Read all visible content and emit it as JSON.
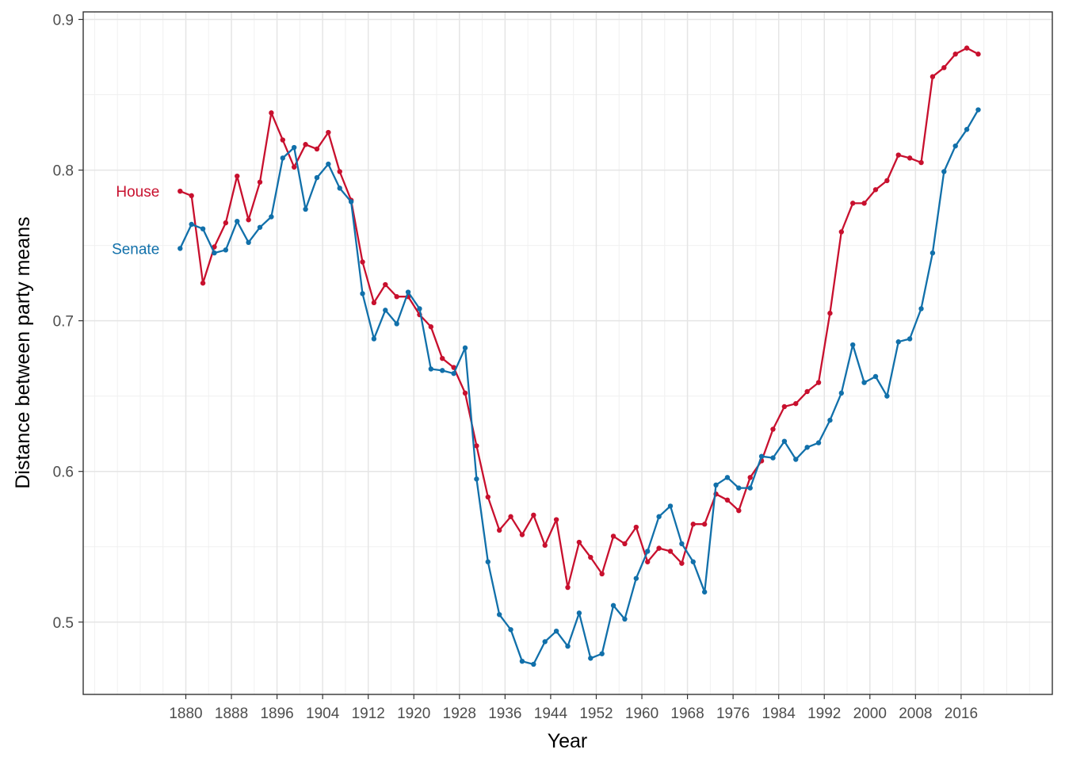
{
  "chart_data": {
    "type": "line",
    "xlabel": "Year",
    "ylabel": "Distance between party means",
    "xlim": [
      1862,
      2032
    ],
    "ylim": [
      0.452,
      0.905
    ],
    "x_ticks": [
      1880,
      1888,
      1896,
      1904,
      1912,
      1920,
      1928,
      1936,
      1944,
      1952,
      1960,
      1968,
      1976,
      1984,
      1992,
      2000,
      2008,
      2016
    ],
    "x_tick_labels": [
      "1880",
      "1888",
      "1896",
      "1904",
      "1912",
      "1920",
      "1928",
      "1936",
      "1944",
      "1952",
      "1960",
      "1968",
      "1976",
      "1984",
      "1992",
      "2000",
      "2008",
      "2016"
    ],
    "y_ticks": [
      0.5,
      0.6,
      0.7,
      0.8,
      0.9
    ],
    "y_tick_labels": [
      "0.5",
      "0.6",
      "0.7",
      "0.8",
      "0.9"
    ],
    "grid": true,
    "legend": "direct labels at left of lines",
    "x": [
      1879,
      1881,
      1883,
      1885,
      1887,
      1889,
      1891,
      1893,
      1895,
      1897,
      1899,
      1901,
      1903,
      1905,
      1907,
      1909,
      1911,
      1913,
      1915,
      1917,
      1919,
      1921,
      1923,
      1925,
      1927,
      1929,
      1931,
      1933,
      1935,
      1937,
      1939,
      1941,
      1943,
      1945,
      1947,
      1949,
      1951,
      1953,
      1955,
      1957,
      1959,
      1961,
      1963,
      1965,
      1967,
      1969,
      1971,
      1973,
      1975,
      1977,
      1979,
      1981,
      1983,
      1985,
      1987,
      1989,
      1991,
      1993,
      1995,
      1997,
      1999,
      2001,
      2003,
      2005,
      2007,
      2009,
      2011,
      2013,
      2015,
      2017,
      2019
    ],
    "series": [
      {
        "name": "House",
        "color": "#c8102e",
        "values": [
          0.786,
          0.783,
          0.725,
          0.749,
          0.765,
          0.796,
          0.767,
          0.792,
          0.838,
          0.82,
          0.802,
          0.817,
          0.814,
          0.825,
          0.799,
          0.78,
          0.739,
          0.712,
          0.724,
          0.716,
          0.716,
          0.704,
          0.696,
          0.675,
          0.669,
          0.652,
          0.617,
          0.583,
          0.561,
          0.57,
          0.558,
          0.571,
          0.551,
          0.568,
          0.523,
          0.553,
          0.543,
          0.532,
          0.557,
          0.552,
          0.563,
          0.54,
          0.549,
          0.547,
          0.539,
          0.565,
          0.565,
          0.585,
          0.581,
          0.574,
          0.596,
          0.607,
          0.628,
          0.643,
          0.645,
          0.653,
          0.659,
          0.705,
          0.759,
          0.778,
          0.778,
          0.787,
          0.793,
          0.81,
          0.808,
          0.805,
          0.862,
          0.868,
          0.877,
          0.881,
          0.877
        ]
      },
      {
        "name": "Senate",
        "color": "#1170aa",
        "values": [
          0.748,
          0.764,
          0.761,
          0.745,
          0.747,
          0.766,
          0.752,
          0.762,
          0.769,
          0.808,
          0.815,
          0.774,
          0.795,
          0.804,
          0.788,
          0.779,
          0.718,
          0.688,
          0.707,
          0.698,
          0.719,
          0.708,
          0.668,
          0.667,
          0.665,
          0.682,
          0.595,
          0.54,
          0.505,
          0.495,
          0.474,
          0.472,
          0.487,
          0.494,
          0.484,
          0.506,
          0.476,
          0.479,
          0.511,
          0.502,
          0.529,
          0.547,
          0.57,
          0.577,
          0.552,
          0.54,
          0.52,
          0.591,
          0.596,
          0.589,
          0.589,
          0.61,
          0.609,
          0.62,
          0.608,
          0.616,
          0.619,
          0.634,
          0.652,
          0.684,
          0.659,
          0.663,
          0.65,
          0.686,
          0.688,
          0.708,
          0.745,
          0.799,
          0.816,
          0.827,
          0.84
        ]
      }
    ],
    "annotations": [
      {
        "text": "House",
        "series": "House"
      },
      {
        "text": "Senate",
        "series": "Senate"
      }
    ]
  }
}
